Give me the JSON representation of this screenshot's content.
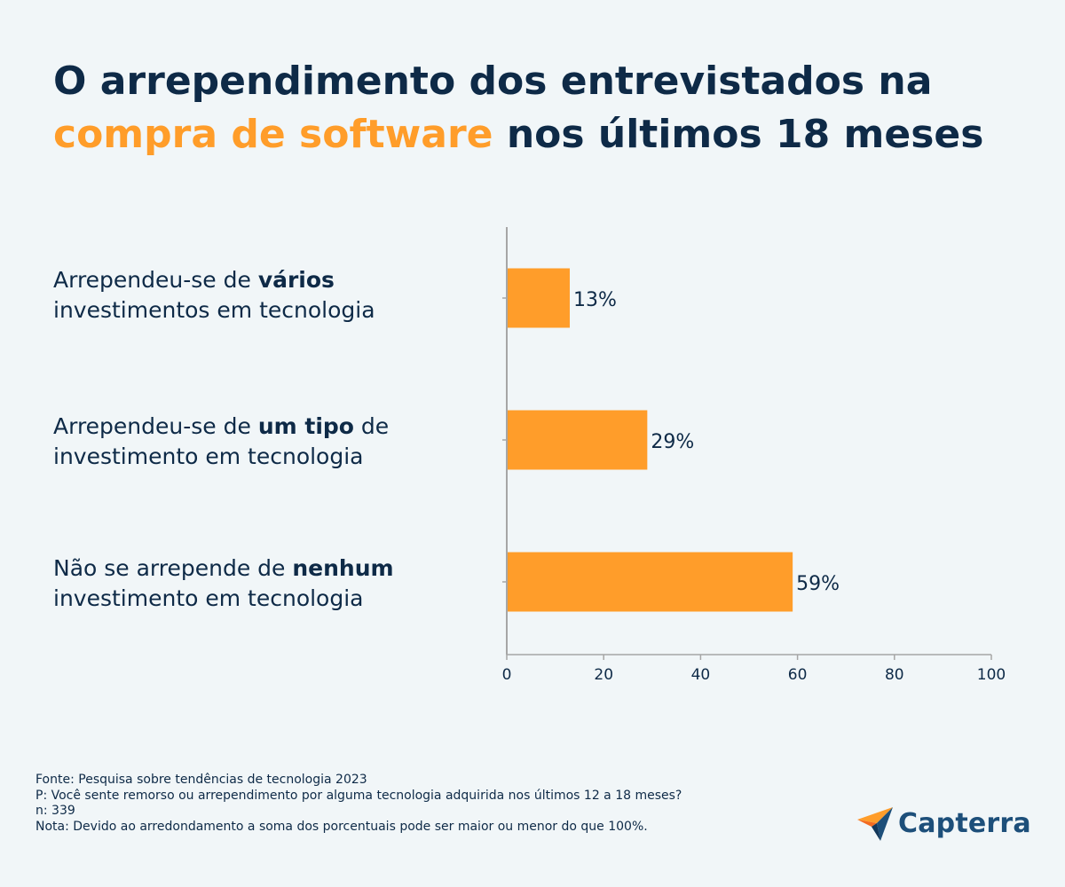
{
  "title": {
    "line1": "O arrependimento dos entrevistados na",
    "highlight": "compra de software",
    "line2_rest": " nos últimos 18 meses"
  },
  "colors": {
    "bar": "#ff9d2a",
    "text": "#0e2a47",
    "axis": "#a6a6a6",
    "background": "#f1f6f8"
  },
  "chart_data": {
    "type": "bar",
    "orientation": "horizontal",
    "categories": [
      "Arrependeu-se de vários investimentos em tecnologia",
      "Arrependeu-se de um tipo de investimento em tecnologia",
      "Não se arrepende de nenhum investimento em tecnologia"
    ],
    "category_parts": [
      {
        "pre": "Arrependeu-se de ",
        "bold": "vários",
        "post": "",
        "line2": "investimentos em tecnologia"
      },
      {
        "pre": "Arrependeu-se de ",
        "bold": "um tipo",
        "post": " de",
        "line2": "investimento em tecnologia"
      },
      {
        "pre": "Não se arrepende de ",
        "bold": "nenhum",
        "post": "",
        "line2": "investimento em tecnologia"
      }
    ],
    "values": [
      13,
      29,
      59
    ],
    "data_labels": [
      "13%",
      "29%",
      "59%"
    ],
    "xlim": [
      0,
      100
    ],
    "xticks": [
      0,
      20,
      40,
      60,
      80,
      100
    ],
    "xtick_labels": [
      "0",
      "20",
      "40",
      "60",
      "80",
      "100"
    ],
    "grid": false,
    "legend": "none"
  },
  "footer": {
    "source": "Fonte: Pesquisa sobre tendências de tecnologia 2023",
    "question": "P: Você sente remorso ou arrependimento por alguma tecnologia adquirida nos últimos 12 a 18 meses?",
    "n": "n: 339",
    "note": "Nota: Devido ao arredondamento a soma dos porcentuais pode ser maior ou menor do que 100%."
  },
  "logo": {
    "text": "Capterra",
    "icon": "capterra-arrow-icon"
  }
}
